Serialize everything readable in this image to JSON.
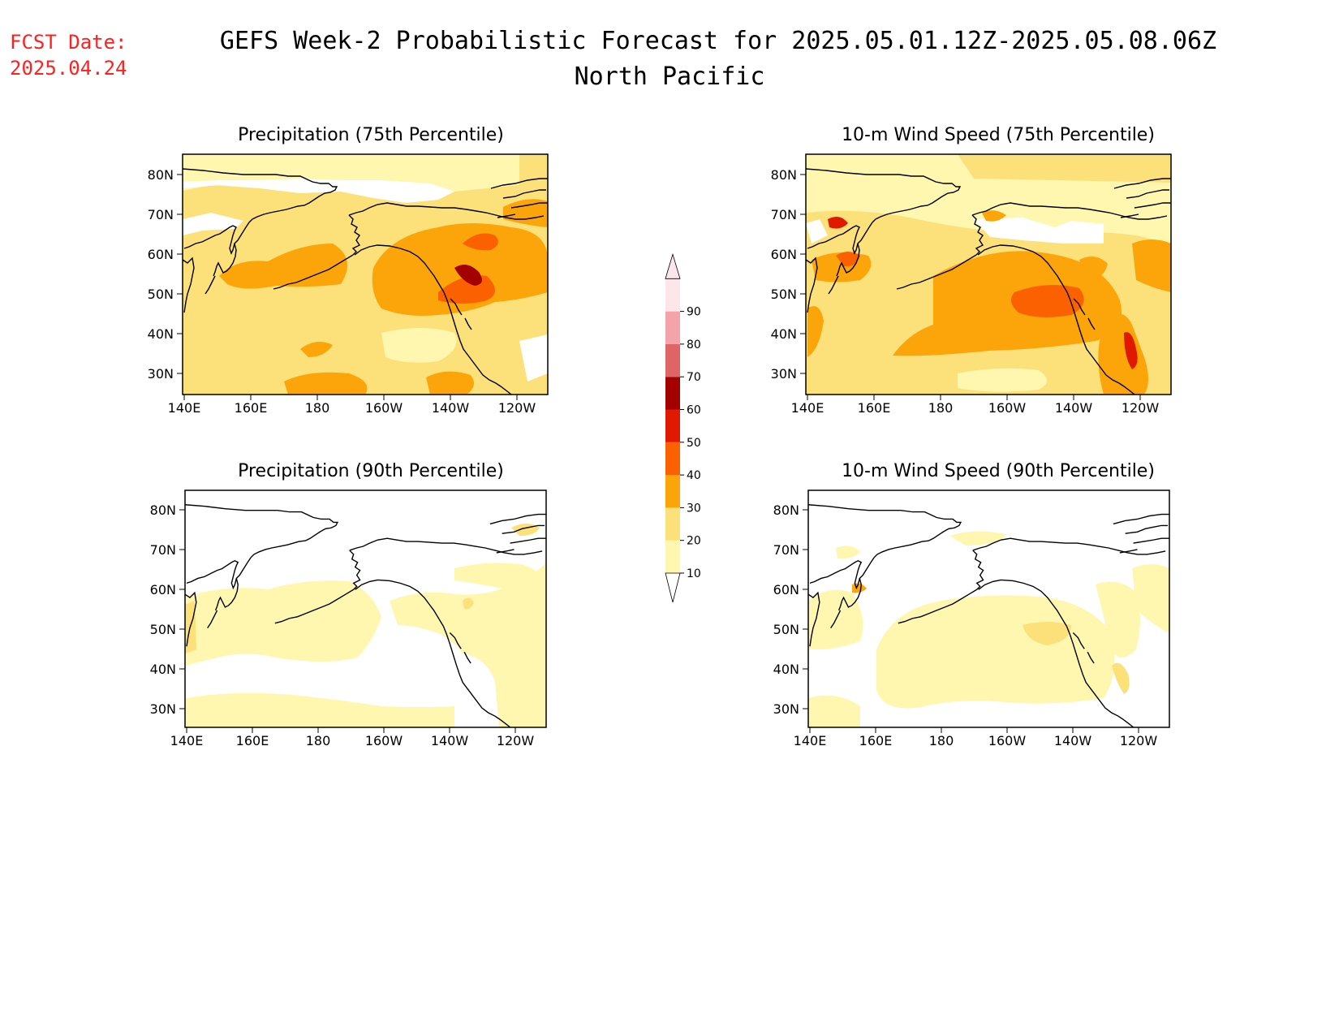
{
  "header": {
    "fcst_label": "FCST Date:",
    "fcst_date": "2025.04.24",
    "title": "GEFS Week-2 Probabilistic Forecast for 2025.05.01.12Z-2025.05.08.06Z",
    "subtitle": "North Pacific",
    "fcst_color": "#ff2020"
  },
  "axes": {
    "lon_labels": [
      "140E",
      "160E",
      "180",
      "160W",
      "140W",
      "120W"
    ],
    "lat_labels": [
      "80N",
      "70N",
      "60N",
      "50N",
      "40N",
      "30N"
    ]
  },
  "panels": [
    {
      "key": "precip75",
      "title": "Precipitation (75th Percentile)"
    },
    {
      "key": "wind75",
      "title": "10-m Wind Speed (75th Percentile)"
    },
    {
      "key": "precip90",
      "title": "Precipitation (90th Percentile)"
    },
    {
      "key": "wind90",
      "title": "10-m Wind Speed (90th Percentile)"
    }
  ],
  "colorbar": {
    "levels": [
      "10",
      "20",
      "30",
      "40",
      "50",
      "60",
      "70",
      "80",
      "90"
    ],
    "colors": [
      "#fff7b0",
      "#fce07a",
      "#fca50a",
      "#fc6100",
      "#e01a00",
      "#a30000",
      "#df6466",
      "#f4a4a8",
      "#fde6ea"
    ]
  }
}
